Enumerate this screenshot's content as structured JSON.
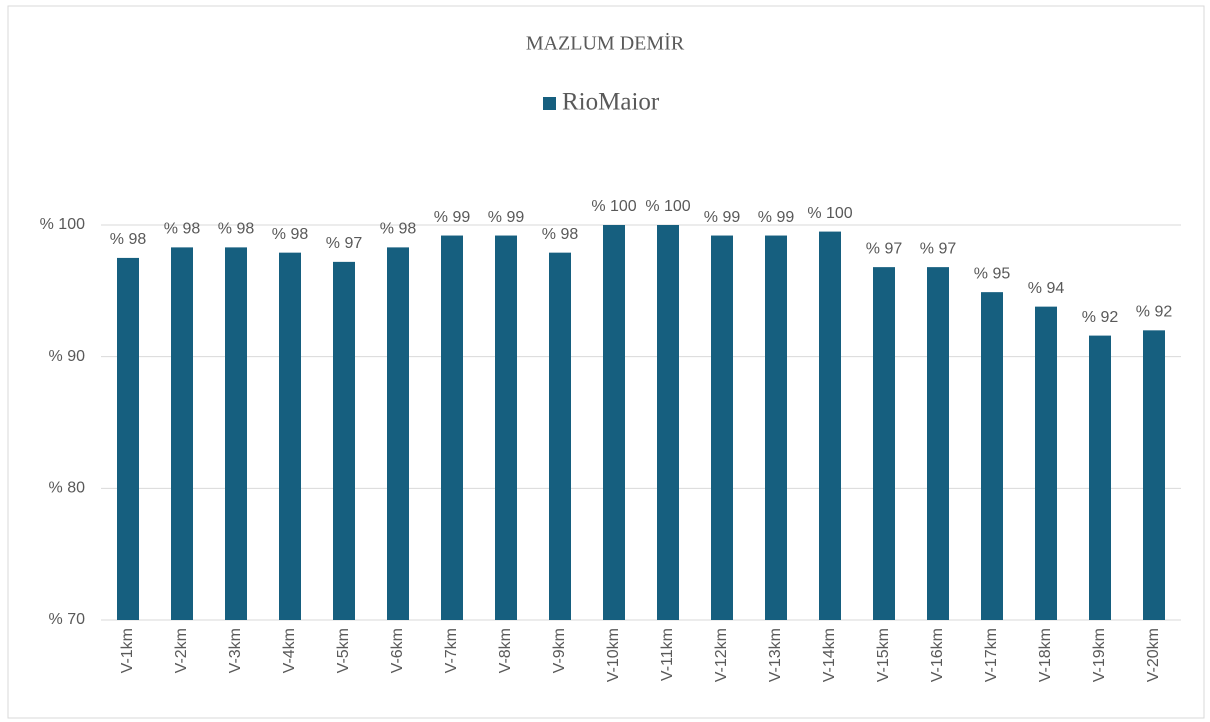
{
  "chart_data": {
    "type": "bar",
    "title": "MAZLUM  DEMİR",
    "categories": [
      "V-1km",
      "V-2km",
      "V-3km",
      "V-4km",
      "V-5km",
      "V-6km",
      "V-7km",
      "V-8km",
      "V-9km",
      "V-10km",
      "V-11km",
      "V-12km",
      "V-13km",
      "V-14km",
      "V-15km",
      "V-16km",
      "V-17km",
      "V-18km",
      "V-19km",
      "V-20km"
    ],
    "series": [
      {
        "name": "RioMaior",
        "color": "#165f7f",
        "values": [
          97.5,
          98.3,
          98.3,
          97.9,
          97.2,
          98.3,
          99.2,
          99.2,
          97.9,
          100,
          100,
          99.2,
          99.2,
          99.5,
          96.8,
          96.8,
          94.9,
          93.8,
          91.6,
          92.0
        ],
        "value_labels": [
          "% 98",
          "% 98",
          "% 98",
          "% 98",
          "% 97",
          "% 98",
          "% 99",
          "% 99",
          "% 98",
          "% 100",
          "% 100",
          "% 99",
          "% 99",
          "% 100",
          "% 97",
          "% 97",
          "% 95",
          "% 94",
          "% 92",
          "% 92"
        ]
      }
    ],
    "ylim": [
      70,
      100
    ],
    "yticks": [
      {
        "value": 70,
        "label": "% 70"
      },
      {
        "value": 80,
        "label": "% 80"
      },
      {
        "value": 90,
        "label": "% 90"
      },
      {
        "value": 100,
        "label": "% 100"
      }
    ],
    "grid": true,
    "legend": "top"
  }
}
